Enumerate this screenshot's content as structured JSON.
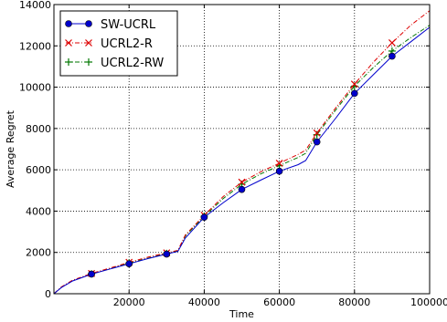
{
  "chart_data": {
    "type": "line",
    "xlabel": "Time",
    "ylabel": "Average Regret",
    "xlim": [
      0,
      100000
    ],
    "ylim": [
      0,
      14000
    ],
    "grid": true,
    "grid_style": "dotted",
    "legend_placement": "top-left",
    "x_ticks": [
      20000,
      40000,
      60000,
      80000,
      100000
    ],
    "x_tick_labels": [
      "20000",
      "40000",
      "60000",
      "80000",
      "100000"
    ],
    "y_ticks": [
      0,
      2000,
      4000,
      6000,
      8000,
      10000,
      12000,
      14000
    ],
    "y_tick_labels": [
      "0",
      "2000",
      "4000",
      "6000",
      "8000",
      "10000",
      "12000",
      "14000"
    ],
    "series": [
      {
        "name": "SW-UCRL",
        "color": "#0000cc",
        "line_style": "solid",
        "marker": "circle",
        "x": [
          0,
          2000,
          5000,
          10000,
          15000,
          20000,
          25000,
          30000,
          33000,
          35000,
          40000,
          45000,
          50000,
          55000,
          60000,
          65000,
          67000,
          70000,
          75000,
          80000,
          85000,
          90000,
          95000,
          100000
        ],
        "y": [
          0,
          300,
          620,
          950,
          1200,
          1450,
          1700,
          1920,
          2050,
          2700,
          3700,
          4400,
          5050,
          5500,
          5930,
          6250,
          6450,
          7350,
          8500,
          9700,
          10600,
          11500,
          12200,
          12900
        ],
        "markers_x": [
          10000,
          20000,
          30000,
          40000,
          50000,
          60000,
          70000,
          80000,
          90000
        ],
        "markers_y": [
          950,
          1450,
          1920,
          3700,
          5050,
          5930,
          7350,
          9700,
          11500
        ]
      },
      {
        "name": "UCRL2-R",
        "color": "#dd0000",
        "line_style": "dashdot",
        "marker": "x",
        "x": [
          0,
          2000,
          5000,
          10000,
          15000,
          20000,
          25000,
          30000,
          33000,
          35000,
          40000,
          45000,
          50000,
          55000,
          60000,
          65000,
          67000,
          70000,
          75000,
          80000,
          85000,
          90000,
          95000,
          100000
        ],
        "y": [
          0,
          330,
          660,
          980,
          1250,
          1520,
          1770,
          1980,
          2100,
          2850,
          3800,
          4700,
          5400,
          5900,
          6320,
          6750,
          6950,
          7780,
          9000,
          10150,
          11200,
          12150,
          13000,
          13700
        ],
        "markers_x": [
          10000,
          20000,
          30000,
          40000,
          50000,
          60000,
          70000,
          80000,
          90000
        ],
        "markers_y": [
          980,
          1520,
          1980,
          3800,
          5400,
          6320,
          7780,
          10150,
          12150
        ]
      },
      {
        "name": "UCRL2-RW",
        "color": "#007700",
        "line_style": "dashdot",
        "marker": "plus",
        "x": [
          0,
          2000,
          5000,
          10000,
          15000,
          20000,
          25000,
          30000,
          33000,
          35000,
          40000,
          45000,
          50000,
          55000,
          60000,
          65000,
          67000,
          70000,
          75000,
          80000,
          85000,
          90000,
          95000,
          100000
        ],
        "y": [
          0,
          320,
          640,
          960,
          1220,
          1480,
          1720,
          1950,
          2070,
          2800,
          3750,
          4600,
          5300,
          5800,
          6200,
          6600,
          6800,
          7700,
          8900,
          10050,
          10950,
          11750,
          12400,
          13000
        ],
        "markers_x": [
          10000,
          20000,
          30000,
          40000,
          50000,
          60000,
          70000,
          80000,
          90000
        ],
        "markers_y": [
          960,
          1480,
          1950,
          3750,
          5300,
          6200,
          7700,
          10050,
          11750
        ]
      }
    ]
  }
}
